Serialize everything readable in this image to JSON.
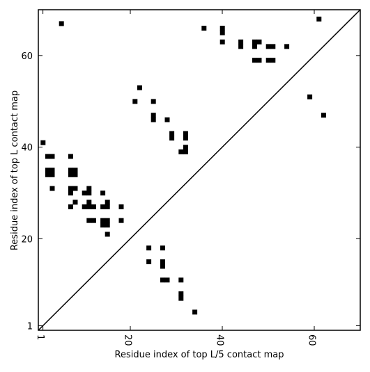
{
  "chart_data": {
    "type": "scatter",
    "title": "",
    "xlabel": "Residue index of top L/5 contact map",
    "ylabel": "Residue index of top L contact map",
    "xlim": [
      0,
      70
    ],
    "ylim": [
      0,
      70
    ],
    "xticks": [
      "1",
      "20",
      "40",
      "60"
    ],
    "xtick_values": [
      1,
      20,
      40,
      60
    ],
    "yticks": [
      "1",
      "20",
      "40",
      "60"
    ],
    "ytick_values": [
      1,
      20,
      40,
      60
    ],
    "diagonal": true,
    "grid": false,
    "marker": "square",
    "marker_color": "#000000",
    "series": [
      {
        "name": "",
        "points": [
          [
            5,
            67
          ],
          [
            36,
            66
          ],
          [
            40,
            66
          ],
          [
            40,
            65
          ],
          [
            40,
            63
          ],
          [
            44,
            63
          ],
          [
            44,
            62
          ],
          [
            47,
            63
          ],
          [
            48,
            63
          ],
          [
            47,
            62
          ],
          [
            50,
            62
          ],
          [
            51,
            62
          ],
          [
            54,
            62
          ],
          [
            47,
            59
          ],
          [
            48,
            59
          ],
          [
            50,
            59
          ],
          [
            51,
            59
          ],
          [
            61,
            68
          ],
          [
            22,
            53
          ],
          [
            21,
            50
          ],
          [
            25,
            50
          ],
          [
            59,
            51
          ],
          [
            25,
            47
          ],
          [
            25,
            46
          ],
          [
            62,
            47
          ],
          [
            28,
            46
          ],
          [
            29,
            43
          ],
          [
            29,
            42
          ],
          [
            32,
            43
          ],
          [
            32,
            42
          ],
          [
            32,
            40
          ],
          [
            31,
            39
          ],
          [
            32,
            39
          ],
          [
            1,
            41
          ],
          [
            2,
            38
          ],
          [
            3,
            38
          ],
          [
            7,
            38
          ],
          [
            2,
            35
          ],
          [
            3,
            35
          ],
          [
            2,
            34
          ],
          [
            3,
            34
          ],
          [
            7,
            35
          ],
          [
            8,
            35
          ],
          [
            7,
            34
          ],
          [
            8,
            34
          ],
          [
            3,
            31
          ],
          [
            7,
            31
          ],
          [
            8,
            31
          ],
          [
            7,
            30
          ],
          [
            11,
            31
          ],
          [
            10,
            30
          ],
          [
            11,
            30
          ],
          [
            14,
            30
          ],
          [
            8,
            28
          ],
          [
            11,
            28
          ],
          [
            15,
            28
          ],
          [
            7,
            27
          ],
          [
            10,
            27
          ],
          [
            11,
            27
          ],
          [
            12,
            27
          ],
          [
            14,
            27
          ],
          [
            15,
            27
          ],
          [
            18,
            27
          ],
          [
            11,
            24
          ],
          [
            12,
            24
          ],
          [
            14,
            24
          ],
          [
            15,
            24
          ],
          [
            14,
            23
          ],
          [
            15,
            23
          ],
          [
            18,
            24
          ],
          [
            15,
            21
          ],
          [
            24,
            18
          ],
          [
            27,
            18
          ],
          [
            24,
            15
          ],
          [
            27,
            15
          ],
          [
            27,
            14
          ],
          [
            27,
            11
          ],
          [
            28,
            11
          ],
          [
            31,
            11
          ],
          [
            31,
            8
          ],
          [
            31,
            7
          ],
          [
            34,
            4
          ]
        ]
      }
    ]
  }
}
